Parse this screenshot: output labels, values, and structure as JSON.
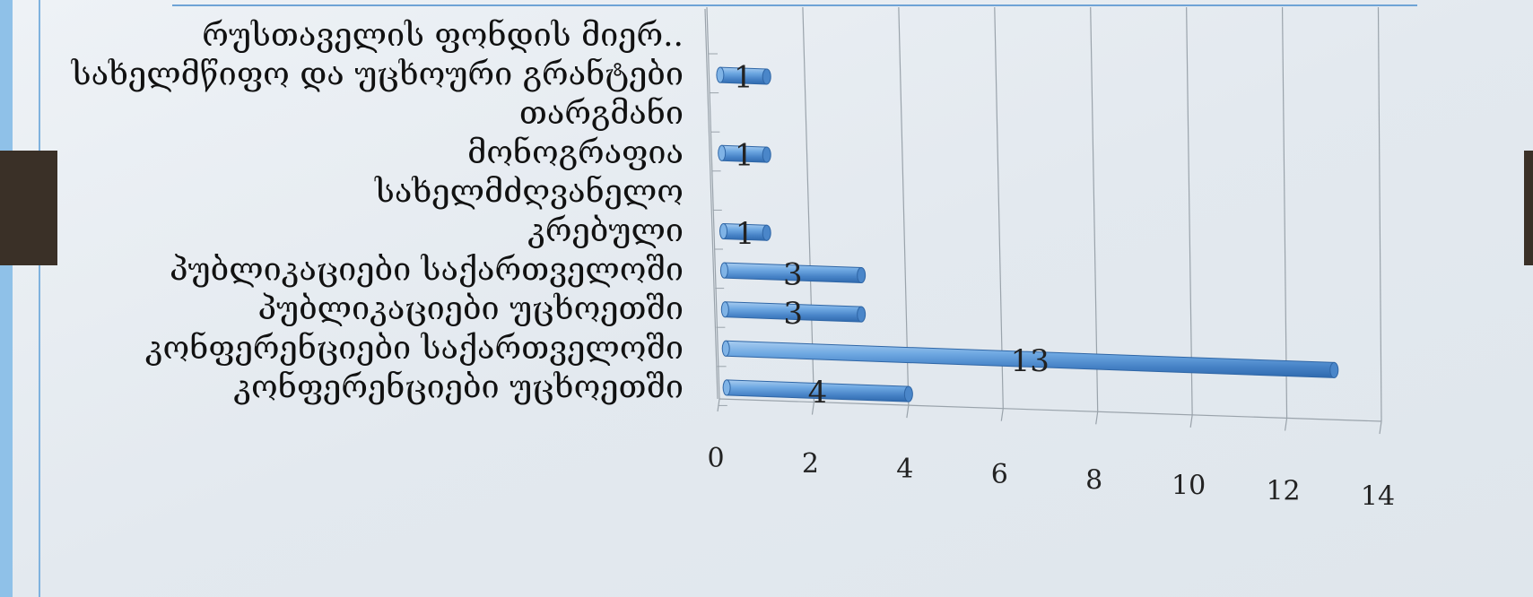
{
  "chart_data": {
    "type": "bar",
    "orientation": "horizontal",
    "style": "3d-cylinder",
    "title": "",
    "xlabel": "",
    "ylabel": "",
    "xlim": [
      0,
      14
    ],
    "x_ticks": [
      0,
      2,
      4,
      6,
      8,
      10,
      12,
      14
    ],
    "grid": true,
    "legend": "none",
    "bar_color": "#4f8fd1",
    "categories": [
      "რუსთაველის ფონდის მიერ..",
      "სახელმწიფო და უცხოური გრანტები",
      "თარგმანი",
      "მონოგრაფია",
      "სახელმძღვანელო",
      "კრებული",
      "პუბლიკაციები საქართველოში",
      "პუბლიკაციები უცხოეთში",
      "კონფერენციები საქართველოში",
      "კონფერენციები უცხოეთში"
    ],
    "values": [
      null,
      1,
      null,
      1,
      null,
      1,
      3,
      3,
      13,
      4
    ],
    "data_labels": [
      "",
      "1",
      "",
      "1",
      "",
      "1",
      "3",
      "3",
      "13",
      "4"
    ]
  }
}
